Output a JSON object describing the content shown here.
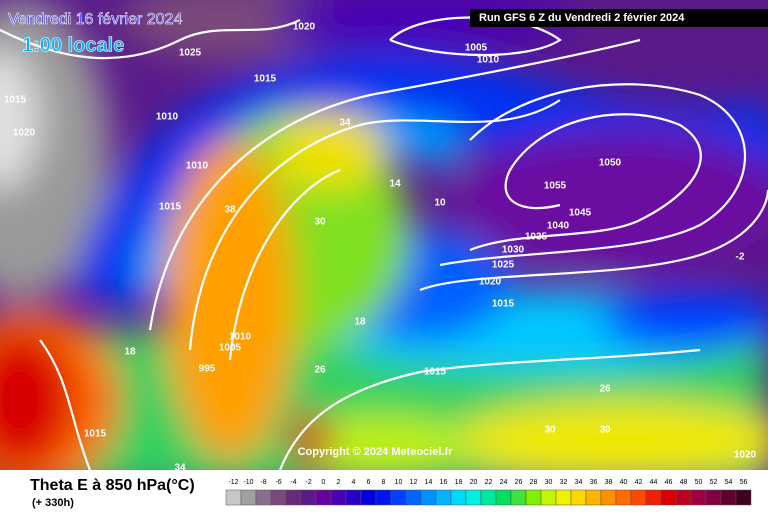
{
  "header": {
    "date": "Vendredi 16 février 2024",
    "time": "1:00 locale",
    "run": "Run GFS 6 Z du Vendredi 2 février 2024"
  },
  "footer": {
    "title": "Theta E à 850 hPa(°C)",
    "lead": "(+ 330h)",
    "copyright": "Copyright © 2024 Meteociel.fr"
  },
  "legend": {
    "steps": [
      {
        "value": -12,
        "color": "#c8c8c8"
      },
      {
        "value": -10,
        "color": "#a0a0a0"
      },
      {
        "value": -8,
        "color": "#8c6e8c"
      },
      {
        "value": -6,
        "color": "#7a4a7a"
      },
      {
        "value": -4,
        "color": "#6a2a7a"
      },
      {
        "value": -2,
        "color": "#5a1a8a"
      },
      {
        "value": 0,
        "color": "#6a00a0"
      },
      {
        "value": 2,
        "color": "#4a00b4"
      },
      {
        "value": 4,
        "color": "#2800c8"
      },
      {
        "value": 6,
        "color": "#0000dc"
      },
      {
        "value": 8,
        "color": "#0014f0"
      },
      {
        "value": 10,
        "color": "#0040ff"
      },
      {
        "value": 12,
        "color": "#0064ff"
      },
      {
        "value": 14,
        "color": "#0090ff"
      },
      {
        "value": 16,
        "color": "#00b4ff"
      },
      {
        "value": 18,
        "color": "#00d8ff"
      },
      {
        "value": 20,
        "color": "#00f0e0"
      },
      {
        "value": 22,
        "color": "#00e8a0"
      },
      {
        "value": 24,
        "color": "#00e060"
      },
      {
        "value": 26,
        "color": "#40e040"
      },
      {
        "value": 28,
        "color": "#80f000"
      },
      {
        "value": 30,
        "color": "#c0f800"
      },
      {
        "value": 32,
        "color": "#f0f000"
      },
      {
        "value": 34,
        "color": "#ffd800"
      },
      {
        "value": 36,
        "color": "#ffb400"
      },
      {
        "value": 38,
        "color": "#ff9000"
      },
      {
        "value": 40,
        "color": "#ff6c00"
      },
      {
        "value": 42,
        "color": "#ff4800"
      },
      {
        "value": 44,
        "color": "#f02000"
      },
      {
        "value": 46,
        "color": "#d80000"
      },
      {
        "value": 48,
        "color": "#c00020"
      },
      {
        "value": 50,
        "color": "#a00040"
      },
      {
        "value": 52,
        "color": "#800040"
      },
      {
        "value": 54,
        "color": "#600030"
      },
      {
        "value": 56,
        "color": "#400020"
      }
    ]
  },
  "map_labels": [
    "1055",
    "1050",
    "1045",
    "1040",
    "1035",
    "1030",
    "1025",
    "1020",
    "1015",
    "1010",
    "1005",
    "1020",
    "1015",
    "1010",
    "1010",
    "1015",
    "1010",
    "1005",
    "995",
    "1015",
    "1015",
    "1020",
    "1025",
    "1015",
    "1020",
    "30",
    "34",
    "38",
    "18",
    "10",
    "26",
    "30",
    "14",
    "-2",
    "30",
    "34",
    "26",
    "18"
  ]
}
